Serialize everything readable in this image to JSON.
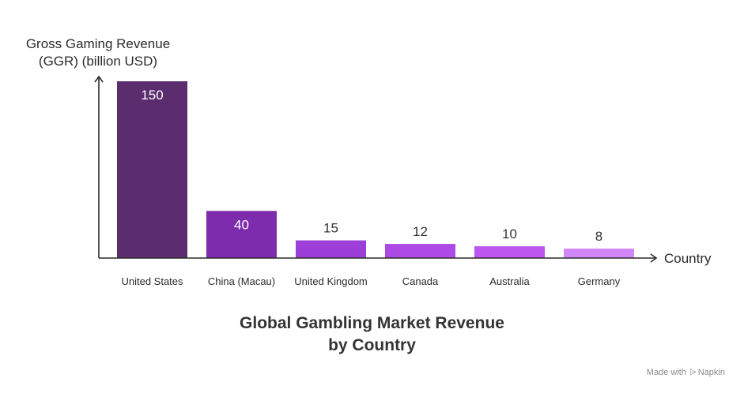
{
  "chart_data": {
    "type": "bar",
    "categories": [
      "United States",
      "China (Macau)",
      "United Kingdom",
      "Canada",
      "Australia",
      "Germany"
    ],
    "values": [
      150,
      40,
      15,
      12,
      10,
      8
    ],
    "colors": [
      "#5b2d6e",
      "#7d2cad",
      "#9b3fd8",
      "#ad4ae6",
      "#bb55ee",
      "#d187f7"
    ],
    "label_colors": [
      "#ffffff",
      "#ffffff",
      "#333333",
      "#333333",
      "#333333",
      "#333333"
    ],
    "ylabel_lines": [
      "Gross Gaming Revenue",
      "(GGR) (billion USD)"
    ],
    "xlabel": "Country",
    "title_lines": [
      "Global Gambling Market Revenue",
      "by Country"
    ],
    "ylim": [
      0,
      150
    ],
    "grid": false
  },
  "watermark": {
    "prefix": "Made with",
    "brand": "Napkin"
  }
}
